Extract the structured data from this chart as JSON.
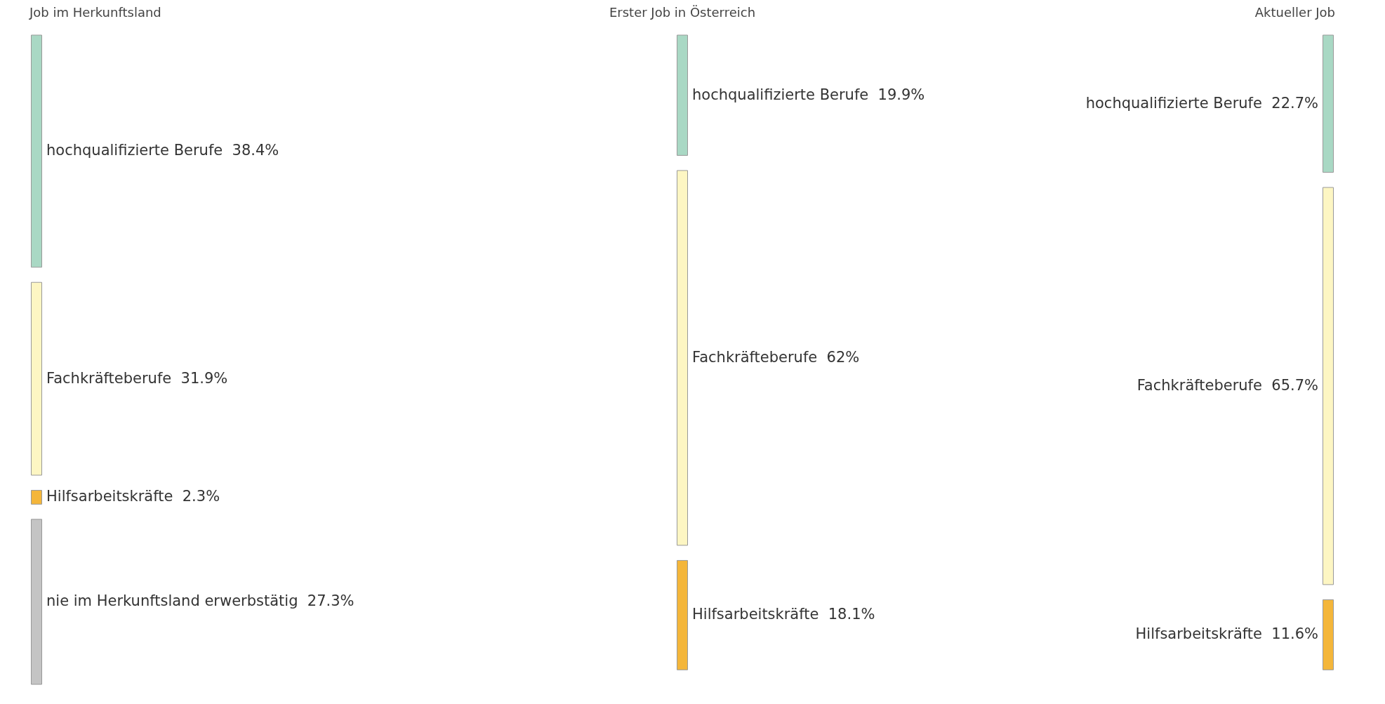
{
  "chart_data": {
    "type": "other",
    "categories": [
      "hochqualifizierte Berufe",
      "Fachkräfteberufe",
      "Hilfsarbeitskräfte",
      "nie im Herkunftsland erwerbstätig"
    ],
    "data_labels": true,
    "colors": [
      "#a9d8c4",
      "#fdf6c3",
      "#f4b63a",
      "#c4c4c4"
    ],
    "series": [
      {
        "name": "Job im Herkunftsland",
        "values": [
          38.4,
          31.9,
          2.3,
          27.3
        ],
        "value_labels": [
          "38.4%",
          "31.9%",
          "2.3%",
          "27.3%"
        ]
      },
      {
        "name": "Erster Job in Österreich",
        "values": [
          19.9,
          62,
          18.1,
          null
        ],
        "value_labels": [
          "19.9%",
          "62%",
          "18.1%",
          null
        ]
      },
      {
        "name": "Aktueller Job",
        "values": [
          22.7,
          65.7,
          11.6,
          null
        ],
        "value_labels": [
          "22.7%",
          "65.7%",
          "11.6%",
          null
        ]
      }
    ]
  }
}
